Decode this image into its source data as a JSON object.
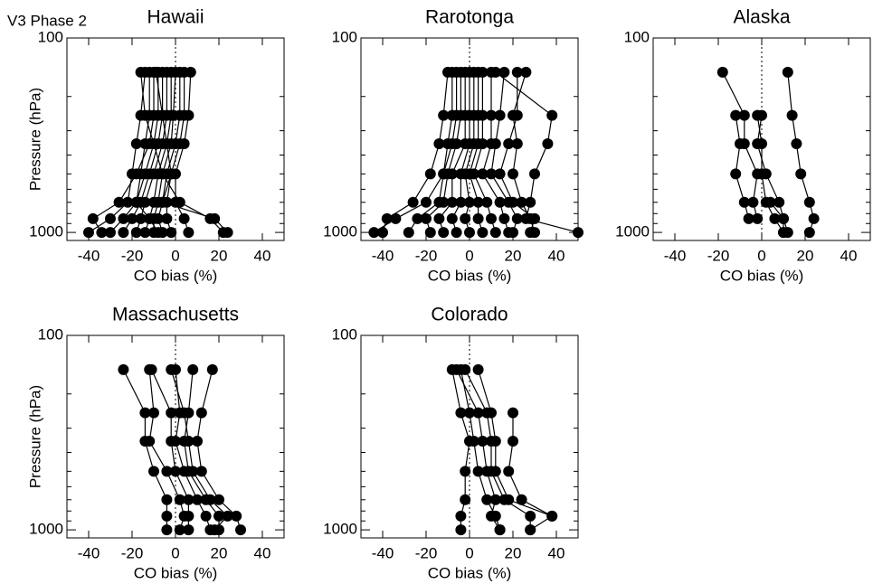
{
  "suptitle": "V3 Phase 2",
  "chart_data": [
    {
      "type": "line",
      "title": "Hawaii",
      "xlabel": "CO bias (%)",
      "ylabel": "Pressure (hPa)",
      "color": "#000000",
      "log_y": true,
      "reference_x": 0,
      "xlim": [
        -50,
        50
      ],
      "xticks": [
        -40,
        -20,
        0,
        20,
        40
      ],
      "ylim": [
        1100,
        100
      ],
      "yticks": [
        100,
        1000
      ],
      "yminor_ticks": [
        200,
        300,
        400,
        500,
        600,
        700,
        800,
        900
      ],
      "y": [
        150,
        250,
        350,
        500,
        700,
        850,
        1000
      ],
      "series": [
        {
          "x": [
            -14,
            -16,
            -18,
            -20,
            -22,
            -30,
            -40
          ]
        },
        {
          "x": [
            -10,
            -10,
            -12,
            -18,
            -26,
            -38,
            -34
          ]
        },
        {
          "x": [
            -8,
            -8,
            -10,
            -14,
            -18,
            -24,
            -30
          ]
        },
        {
          "x": [
            -6,
            -6,
            -8,
            -12,
            -16,
            -20,
            -24
          ]
        },
        {
          "x": [
            -4,
            -4,
            -6,
            -10,
            -14,
            -16,
            -18
          ]
        },
        {
          "x": [
            -2,
            -2,
            -4,
            -8,
            -10,
            -12,
            -14
          ]
        },
        {
          "x": [
            0,
            -1,
            -2,
            -6,
            -8,
            -10,
            -10
          ]
        },
        {
          "x": [
            2,
            2,
            0,
            -4,
            -6,
            -8,
            -6
          ]
        },
        {
          "x": [
            4,
            4,
            2,
            -2,
            -4,
            -4,
            -2
          ]
        },
        {
          "x": [
            7,
            6,
            4,
            0,
            0,
            4,
            6
          ]
        },
        {
          "x": [
            -12,
            -12,
            -14,
            -16,
            -18,
            -12,
            -8
          ]
        },
        {
          "x": [
            -16,
            -14,
            -10,
            -6,
            2,
            16,
            22
          ]
        },
        {
          "x": [
            -9,
            -6,
            -4,
            -2,
            -6,
            18,
            24
          ]
        }
      ]
    },
    {
      "type": "line",
      "title": "Rarotonga",
      "xlabel": "CO bias (%)",
      "color": "#000000",
      "log_y": true,
      "reference_x": 0,
      "xlim": [
        -50,
        50
      ],
      "xticks": [
        -40,
        -20,
        0,
        20,
        40
      ],
      "ylim": [
        1100,
        100
      ],
      "yticks": [
        100,
        1000
      ],
      "yminor_ticks": [
        200,
        300,
        400,
        500,
        600,
        700,
        800,
        900
      ],
      "y": [
        150,
        250,
        350,
        500,
        700,
        850,
        1000
      ],
      "series": [
        {
          "x": [
            -10,
            -12,
            -14,
            -18,
            -26,
            -38,
            -40
          ]
        },
        {
          "x": [
            -8,
            -8,
            -10,
            -12,
            -20,
            -34,
            -44
          ]
        },
        {
          "x": [
            -6,
            -6,
            -8,
            -12,
            -14,
            -24,
            -28
          ]
        },
        {
          "x": [
            -4,
            -4,
            -6,
            -10,
            -12,
            -20,
            -18
          ]
        },
        {
          "x": [
            -2,
            -2,
            -2,
            -8,
            -8,
            -14,
            -12
          ]
        },
        {
          "x": [
            0,
            0,
            0,
            -4,
            -4,
            -8,
            -6
          ]
        },
        {
          "x": [
            2,
            2,
            2,
            -2,
            0,
            -2,
            0
          ]
        },
        {
          "x": [
            4,
            4,
            4,
            0,
            4,
            4,
            6
          ]
        },
        {
          "x": [
            6,
            6,
            6,
            2,
            8,
            10,
            12
          ]
        },
        {
          "x": [
            10,
            10,
            10,
            6,
            14,
            16,
            18
          ]
        },
        {
          "x": [
            16,
            14,
            12,
            10,
            18,
            22,
            20
          ]
        },
        {
          "x": [
            22,
            22,
            18,
            14,
            20,
            30,
            28
          ]
        },
        {
          "x": [
            12,
            38,
            36,
            30,
            28,
            26,
            50
          ]
        },
        {
          "x": [
            26,
            20,
            22,
            20,
            24,
            28,
            30
          ]
        }
      ]
    },
    {
      "type": "line",
      "title": "Alaska",
      "xlabel": "CO bias (%)",
      "color": "#000000",
      "log_y": true,
      "reference_x": 0,
      "xlim": [
        -50,
        50
      ],
      "xticks": [
        -40,
        -20,
        0,
        20,
        40
      ],
      "ylim": [
        1100,
        100
      ],
      "yticks": [
        100,
        1000
      ],
      "yminor_ticks": [
        200,
        300,
        400,
        500,
        600,
        700,
        800,
        900
      ],
      "y": [
        150,
        250,
        350,
        500,
        700,
        850,
        1000
      ],
      "series": [
        {
          "x": [
            null,
            -12,
            -10,
            -12,
            -8,
            -6,
            null
          ]
        },
        {
          "x": [
            -18,
            -8,
            -8,
            -2,
            -4,
            -2,
            null
          ]
        },
        {
          "x": [
            null,
            -2,
            0,
            0,
            2,
            6,
            10
          ]
        },
        {
          "x": [
            null,
            0,
            -2,
            2,
            8,
            10,
            12
          ]
        },
        {
          "x": [
            12,
            14,
            16,
            18,
            22,
            24,
            22
          ]
        },
        {
          "x": [
            null,
            null,
            null,
            null,
            4,
            10,
            10
          ]
        }
      ]
    },
    {
      "type": "line",
      "title": "Massachusetts",
      "xlabel": "CO bias (%)",
      "ylabel": "Pressure (hPa)",
      "color": "#000000",
      "log_y": true,
      "reference_x": 0,
      "xlim": [
        -50,
        50
      ],
      "xticks": [
        -40,
        -20,
        0,
        20,
        40
      ],
      "ylim": [
        1100,
        100
      ],
      "yticks": [
        100,
        1000
      ],
      "yminor_ticks": [
        200,
        300,
        400,
        500,
        600,
        700,
        800,
        900
      ],
      "y": [
        150,
        250,
        350,
        500,
        700,
        850,
        1000
      ],
      "series": [
        {
          "x": [
            -24,
            -14,
            -14,
            -10,
            -4,
            -4,
            -4
          ]
        },
        {
          "x": [
            -12,
            -10,
            -12,
            -4,
            2,
            4,
            2
          ]
        },
        {
          "x": [
            -11,
            -2,
            -2,
            0,
            6,
            6,
            6
          ]
        },
        {
          "x": [
            0,
            2,
            0,
            4,
            10,
            14,
            16
          ]
        },
        {
          "x": [
            8,
            6,
            4,
            6,
            14,
            20,
            20
          ]
        },
        {
          "x": [
            17,
            12,
            10,
            12,
            20,
            28,
            30
          ]
        },
        {
          "x": [
            -2,
            4,
            6,
            8,
            16,
            24,
            18
          ]
        }
      ]
    },
    {
      "type": "line",
      "title": "Colorado",
      "xlabel": "CO bias (%)",
      "color": "#000000",
      "log_y": true,
      "reference_x": 0,
      "xlim": [
        -50,
        50
      ],
      "xticks": [
        -40,
        -20,
        0,
        20,
        40
      ],
      "ylim": [
        1100,
        100
      ],
      "yticks": [
        100,
        1000
      ],
      "yminor_ticks": [
        200,
        300,
        400,
        500,
        600,
        700,
        800,
        900
      ],
      "y": [
        150,
        250,
        350,
        500,
        700,
        850,
        1000
      ],
      "series": [
        {
          "x": [
            -8,
            -4,
            0,
            -2,
            -2,
            -4,
            -4
          ]
        },
        {
          "x": [
            -4,
            0,
            2,
            4,
            8,
            12,
            14
          ]
        },
        {
          "x": [
            -2,
            8,
            10,
            10,
            16,
            28,
            28
          ]
        },
        {
          "x": [
            4,
            10,
            12,
            12,
            18,
            38,
            28
          ]
        },
        {
          "x": [
            null,
            20,
            20,
            18,
            24,
            38,
            null
          ]
        },
        {
          "x": [
            -6,
            4,
            6,
            8,
            12,
            10,
            14
          ]
        }
      ]
    }
  ]
}
